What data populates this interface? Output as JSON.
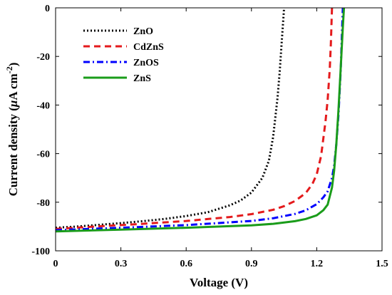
{
  "chart_data": {
    "type": "line",
    "title": "",
    "xlabel": "Voltage (V)",
    "ylabel_main": "Current density (",
    "ylabel_mu": "μ",
    "ylabel_unit": "A cm",
    "ylabel_exp": "-2",
    "ylabel_close": ")",
    "xlim": [
      0,
      1.5
    ],
    "ylim": [
      -100,
      0
    ],
    "xticks": [
      "0",
      "0.3",
      "0.6",
      "0.9",
      "1.2",
      "1.5"
    ],
    "yticks": [
      "0",
      "-20",
      "-40",
      "-60",
      "-80",
      "-100"
    ],
    "xtick_values": [
      0,
      0.3,
      0.6,
      0.9,
      1.2,
      1.5
    ],
    "ytick_values": [
      0,
      -20,
      -40,
      -60,
      -80,
      -100
    ],
    "grid": false,
    "legend_position": "top-left",
    "series": [
      {
        "name": "ZnO",
        "color": "#000000",
        "style": "dotted",
        "x": [
          0,
          0.1,
          0.2,
          0.3,
          0.4,
          0.5,
          0.6,
          0.7,
          0.8,
          0.85,
          0.9,
          0.95,
          0.98,
          1.0,
          1.02,
          1.03,
          1.04,
          1.05
        ],
        "y": [
          -90.5,
          -90,
          -89.3,
          -88.6,
          -87.8,
          -86.9,
          -85.7,
          -84.1,
          -81.3,
          -79.3,
          -76,
          -70,
          -63,
          -53,
          -37,
          -26,
          -13,
          0
        ]
      },
      {
        "name": "CdZnS",
        "color": "#e41a1c",
        "style": "dashed",
        "x": [
          0,
          0.2,
          0.4,
          0.6,
          0.8,
          0.9,
          1.0,
          1.05,
          1.1,
          1.15,
          1.18,
          1.2,
          1.22,
          1.24,
          1.25,
          1.26,
          1.265,
          1.27
        ],
        "y": [
          -91,
          -89.9,
          -88.9,
          -87.7,
          -86.1,
          -84.9,
          -83.1,
          -81.6,
          -79.5,
          -76.2,
          -72.5,
          -68.5,
          -61,
          -47,
          -38,
          -25,
          -15,
          0
        ]
      },
      {
        "name": "ZnOS",
        "color": "#0000ff",
        "style": "dashdot",
        "x": [
          0,
          0.3,
          0.6,
          0.9,
          1.0,
          1.1,
          1.15,
          1.2,
          1.23,
          1.25,
          1.27,
          1.28,
          1.29,
          1.3,
          1.31,
          1.32
        ],
        "y": [
          -91.5,
          -90.5,
          -89.4,
          -87.7,
          -86.6,
          -84.8,
          -83.3,
          -80.8,
          -78,
          -75.5,
          -70,
          -65,
          -56,
          -44,
          -26,
          0
        ]
      },
      {
        "name": "ZnS",
        "color": "#1a9c1a",
        "style": "solid",
        "x": [
          0,
          0.3,
          0.6,
          0.9,
          1.0,
          1.1,
          1.15,
          1.2,
          1.23,
          1.25,
          1.27,
          1.28,
          1.29,
          1.3,
          1.31,
          1.32,
          1.325
        ],
        "y": [
          -92,
          -91.3,
          -90.5,
          -89.5,
          -88.9,
          -87.8,
          -86.9,
          -85.4,
          -83.3,
          -81,
          -74,
          -67,
          -56,
          -42,
          -25,
          -8,
          0
        ]
      }
    ]
  }
}
